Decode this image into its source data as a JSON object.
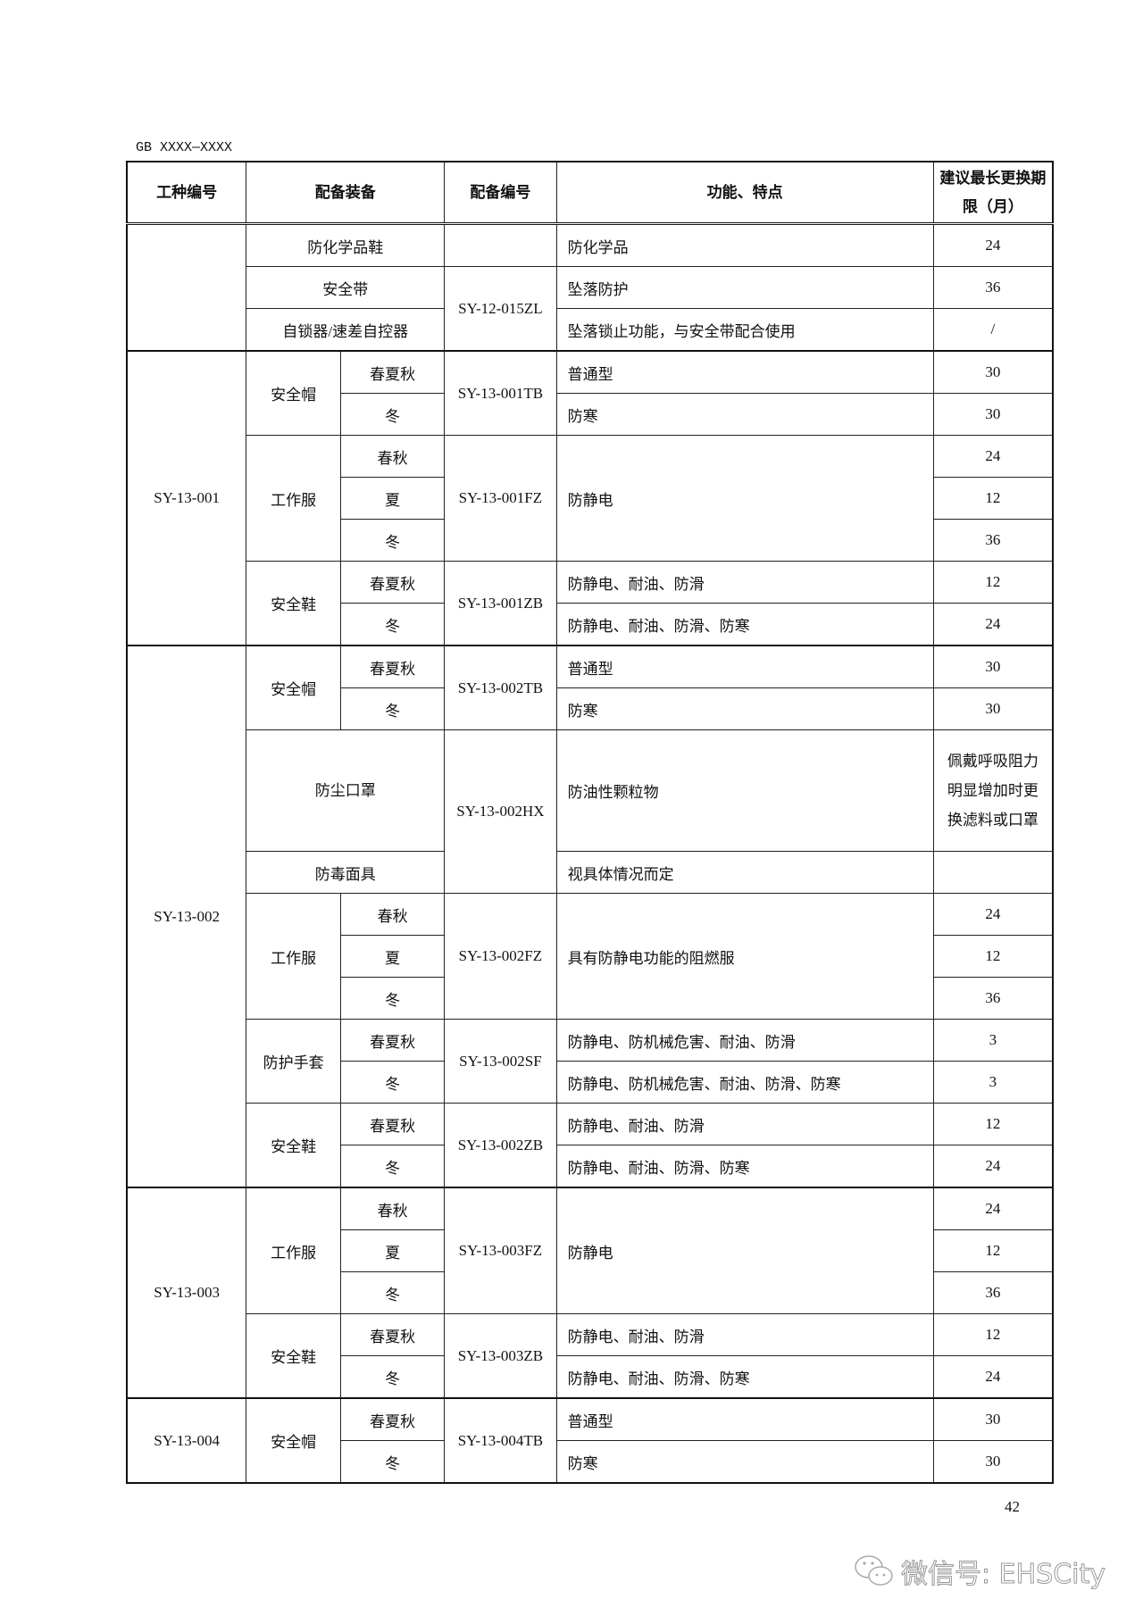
{
  "header": {
    "doc_code": "GB XXXX—XXXX",
    "cols": [
      "工种编号",
      "配备装备",
      "配备编号",
      "功能、特点",
      "建议最长更换期限（月）"
    ]
  },
  "g0": {
    "job": "",
    "r": [
      {
        "equip": "防化学品鞋",
        "code": "",
        "func": "防化学品",
        "period": "24"
      },
      {
        "equip": "安全带",
        "code": "SY-12-015ZL",
        "func": "坠落防护",
        "period": "36"
      },
      {
        "equip": "自锁器/速差自控器",
        "func": "坠落锁止功能，与安全带配合使用",
        "period": "/"
      }
    ]
  },
  "g1": {
    "job": "SY-13-001",
    "r": [
      {
        "equip": "安全帽",
        "season": "春夏秋",
        "code": "SY-13-001TB",
        "func": "普通型",
        "period": "30"
      },
      {
        "season": "冬",
        "func": "防寒",
        "period": "30"
      },
      {
        "equip": "工作服",
        "season": "春秋",
        "code": "SY-13-001FZ",
        "func": "防静电",
        "period": "24"
      },
      {
        "season": "夏",
        "period": "12"
      },
      {
        "season": "冬",
        "period": "36"
      },
      {
        "equip": "安全鞋",
        "season": "春夏秋",
        "code": "SY-13-001ZB",
        "func": "防静电、耐油、防滑",
        "period": "12"
      },
      {
        "season": "冬",
        "func": "防静电、耐油、防滑、防寒",
        "period": "24"
      }
    ]
  },
  "g2": {
    "job": "SY-13-002",
    "r": [
      {
        "equip": "安全帽",
        "season": "春夏秋",
        "code": "SY-13-002TB",
        "func": "普通型",
        "period": "30"
      },
      {
        "season": "冬",
        "func": "防寒",
        "period": "30"
      },
      {
        "equip": "防尘口罩",
        "code": "SY-13-002HX",
        "func": "防油性颗粒物",
        "period": "佩戴呼吸阻力明显增加时更换滤料或口罩"
      },
      {
        "equip": "防毒面具",
        "func": "视具体情况而定",
        "period": ""
      },
      {
        "equip": "工作服",
        "season": "春秋",
        "code": "SY-13-002FZ",
        "func": "具有防静电功能的阻燃服",
        "period": "24"
      },
      {
        "season": "夏",
        "period": "12"
      },
      {
        "season": "冬",
        "period": "36"
      },
      {
        "equip": "防护手套",
        "season": "春夏秋",
        "code": "SY-13-002SF",
        "func": "防静电、防机械危害、耐油、防滑",
        "period": "3"
      },
      {
        "season": "冬",
        "func": "防静电、防机械危害、耐油、防滑、防寒",
        "period": "3"
      },
      {
        "equip": "安全鞋",
        "season": "春夏秋",
        "code": "SY-13-002ZB",
        "func": "防静电、耐油、防滑",
        "period": "12"
      },
      {
        "season": "冬",
        "func": "防静电、耐油、防滑、防寒",
        "period": "24"
      }
    ]
  },
  "g3": {
    "job": "SY-13-003",
    "r": [
      {
        "equip": "工作服",
        "season": "春秋",
        "code": "SY-13-003FZ",
        "func": "防静电",
        "period": "24"
      },
      {
        "season": "夏",
        "period": "12"
      },
      {
        "season": "冬",
        "period": "36"
      },
      {
        "equip": "安全鞋",
        "season": "春夏秋",
        "code": "SY-13-003ZB",
        "func": "防静电、耐油、防滑",
        "period": "12"
      },
      {
        "season": "冬",
        "func": "防静电、耐油、防滑、防寒",
        "period": "24"
      }
    ]
  },
  "g4": {
    "job": "SY-13-004",
    "r": [
      {
        "equip": "安全帽",
        "season": "春夏秋",
        "code": "SY-13-004TB",
        "func": "普通型",
        "period": "30"
      },
      {
        "season": "冬",
        "func": "防寒",
        "period": "30"
      }
    ]
  },
  "footer": {
    "page_number": "42",
    "watermark": "微信号: EHSCity"
  }
}
